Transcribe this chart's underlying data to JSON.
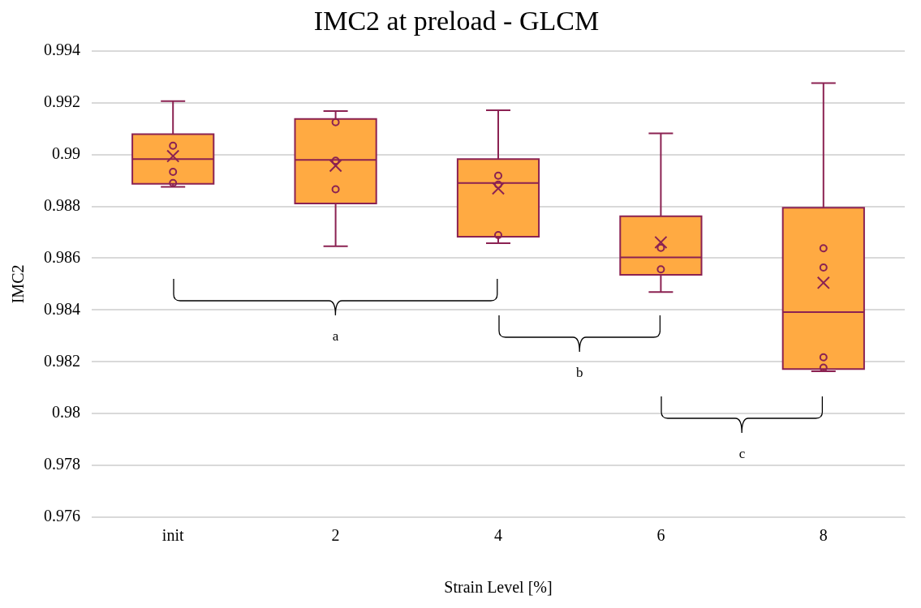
{
  "chart_data": {
    "type": "box",
    "title": "IMC2 at preload - GLCM",
    "xlabel": "Strain Level [%]",
    "ylabel": "IMC2",
    "categories": [
      "init",
      "2",
      "4",
      "6",
      "8"
    ],
    "ylim": [
      0.976,
      0.994
    ],
    "yticks": [
      0.976,
      0.978,
      0.98,
      0.982,
      0.984,
      0.986,
      0.988,
      0.99,
      0.992,
      0.994
    ],
    "grid": "y",
    "legend": false,
    "series": [
      {
        "color": "#ffaa42",
        "boxes": [
          {
            "low": 0.98875,
            "q1": 0.98887,
            "median": 0.98982,
            "q3": 0.99079,
            "high": 0.99206,
            "mean": 0.98994
          },
          {
            "low": 0.98646,
            "q1": 0.98811,
            "median": 0.98979,
            "q3": 0.99137,
            "high": 0.99168,
            "mean": 0.98957
          },
          {
            "low": 0.98658,
            "q1": 0.98683,
            "median": 0.9889,
            "q3": 0.98982,
            "high": 0.99171,
            "mean": 0.98869
          },
          {
            "low": 0.98469,
            "q1": 0.98536,
            "median": 0.98603,
            "q3": 0.98762,
            "high": 0.99082,
            "mean": 0.98661
          },
          {
            "low": 0.98163,
            "q1": 0.98172,
            "median": 0.98392,
            "q3": 0.98795,
            "high": 0.99276,
            "mean": 0.98505
          }
        ]
      },
      {
        "type": "scatter",
        "color": "#8b2252",
        "marker": "circle",
        "x": [
          "init",
          "init",
          "init",
          "2",
          "2",
          "2",
          "4",
          "4",
          "4",
          "6",
          "6",
          "8",
          "8",
          "8",
          "8"
        ],
        "values": [
          0.99034,
          0.98933,
          0.9889,
          0.99125,
          0.98976,
          0.98866,
          0.98918,
          0.98884,
          0.98689,
          0.9864,
          0.98557,
          0.98638,
          0.98564,
          0.98217,
          0.98177
        ]
      }
    ],
    "annotations": [
      "a",
      "b",
      "c"
    ]
  }
}
